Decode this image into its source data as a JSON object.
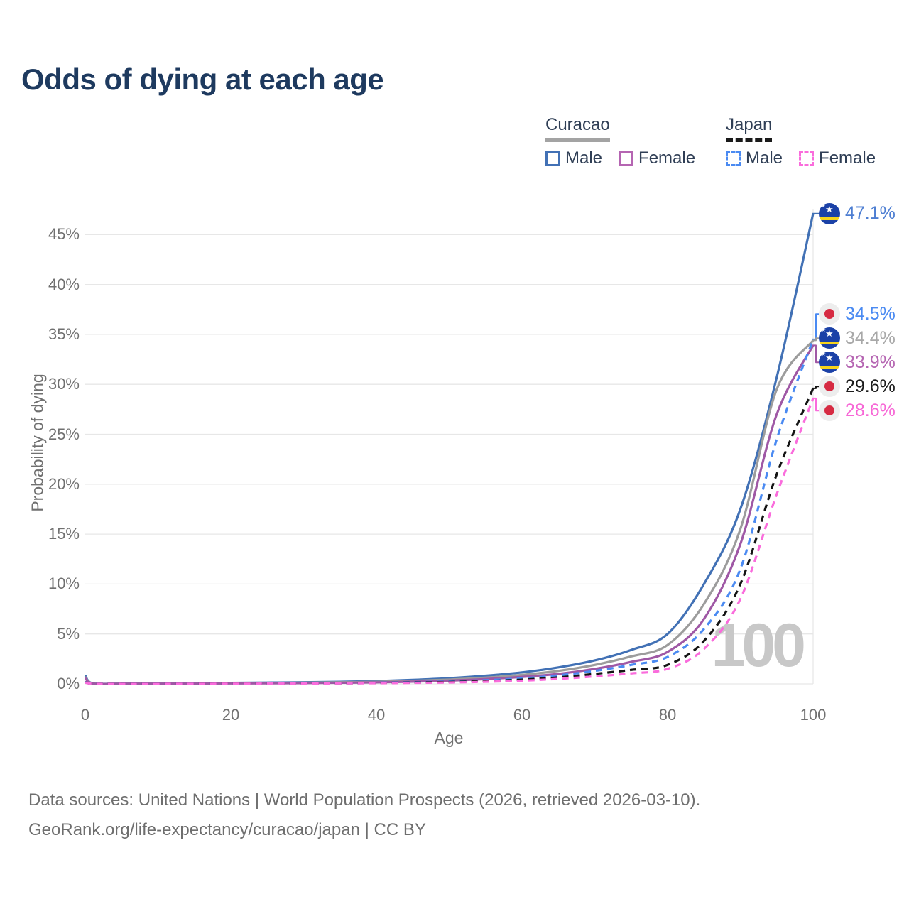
{
  "title": "Odds of dying at each age",
  "legend": {
    "groups": [
      {
        "id": "curacao",
        "label": "Curacao",
        "line_style": "solid",
        "header_line_color": "#a3a3a3",
        "items": [
          {
            "label": "Male",
            "color": "#4271b5"
          },
          {
            "label": "Female",
            "color": "#b565b2"
          }
        ]
      },
      {
        "id": "japan",
        "label": "Japan",
        "line_style": "dashed",
        "header_line_color": "#1a1a1a",
        "items": [
          {
            "label": "Male",
            "color": "#4a8af2"
          },
          {
            "label": "Female",
            "color": "#fa6cdc"
          }
        ]
      }
    ]
  },
  "axes": {
    "y_title": "Probability of dying",
    "x_title": "Age",
    "y_ticks": [
      {
        "value": 0,
        "label": "0%"
      },
      {
        "value": 5,
        "label": "5%"
      },
      {
        "value": 10,
        "label": "10%"
      },
      {
        "value": 15,
        "label": "15%"
      },
      {
        "value": 20,
        "label": "20%"
      },
      {
        "value": 25,
        "label": "25%"
      },
      {
        "value": 30,
        "label": "30%"
      },
      {
        "value": 35,
        "label": "35%"
      },
      {
        "value": 40,
        "label": "40%"
      },
      {
        "value": 45,
        "label": "45%"
      }
    ],
    "x_ticks": [
      {
        "value": 0,
        "label": "0"
      },
      {
        "value": 20,
        "label": "20"
      },
      {
        "value": 40,
        "label": "40"
      },
      {
        "value": 60,
        "label": "60"
      },
      {
        "value": 80,
        "label": "80"
      },
      {
        "value": 100,
        "label": "100"
      }
    ]
  },
  "watermark": "100",
  "chart_data": {
    "type": "line",
    "title": "Odds of dying at each age",
    "xlabel": "Age",
    "ylabel": "Probability of dying",
    "xlim": [
      0,
      100
    ],
    "ylim": [
      0,
      45
    ],
    "grid": "horizontal",
    "x": [
      0,
      1,
      5,
      10,
      15,
      20,
      25,
      30,
      35,
      40,
      45,
      50,
      55,
      60,
      65,
      70,
      75,
      80,
      85,
      90,
      95,
      100
    ],
    "series": [
      {
        "name": "Curacao Male",
        "country": "Curacao",
        "sex": "male",
        "line_style": "solid",
        "color": "#4271b5",
        "label_color": "#4d7ed2",
        "flag": "curacao",
        "end_label": "47.1%",
        "end_value_pct": 47.1,
        "values": [
          0.85,
          0.06,
          0.03,
          0.03,
          0.06,
          0.1,
          0.13,
          0.16,
          0.21,
          0.28,
          0.4,
          0.57,
          0.82,
          1.15,
          1.65,
          2.35,
          3.4,
          5.0,
          10.0,
          17.5,
          30.7,
          47.1
        ]
      },
      {
        "name": "Curacao",
        "country": "Curacao",
        "sex": "both",
        "line_style": "solid",
        "color": "#9c9c9c",
        "label_color": "#a8a8a8",
        "flag": "curacao",
        "end_label": "34.4%",
        "end_value_pct": 34.4,
        "values": [
          0.7,
          0.05,
          0.02,
          0.02,
          0.04,
          0.07,
          0.09,
          0.12,
          0.16,
          0.21,
          0.3,
          0.43,
          0.62,
          0.9,
          1.3,
          1.9,
          2.75,
          3.9,
          8.0,
          15.5,
          29.5,
          34.4
        ]
      },
      {
        "name": "Curacao Female",
        "country": "Curacao",
        "sex": "female",
        "line_style": "solid",
        "color": "#9f58a5",
        "label_color": "#b565b2",
        "flag": "curacao",
        "end_label": "33.9%",
        "end_value_pct": 33.9,
        "values": [
          0.6,
          0.04,
          0.02,
          0.02,
          0.03,
          0.05,
          0.06,
          0.08,
          0.11,
          0.15,
          0.22,
          0.33,
          0.48,
          0.7,
          1.0,
          1.5,
          2.2,
          3.2,
          6.5,
          14.0,
          27.0,
          33.9
        ]
      },
      {
        "name": "Japan Male",
        "country": "Japan",
        "sex": "male",
        "line_style": "dashed",
        "color": "#4a8af2",
        "label_color": "#4a8af2",
        "flag": "japan",
        "end_label": "34.5%",
        "end_value_pct": 34.5,
        "values": [
          0.18,
          0.03,
          0.01,
          0.01,
          0.02,
          0.04,
          0.05,
          0.06,
          0.08,
          0.11,
          0.16,
          0.24,
          0.37,
          0.55,
          0.85,
          1.3,
          1.9,
          2.7,
          5.5,
          11.5,
          24.5,
          34.5
        ]
      },
      {
        "name": "Japan",
        "country": "Japan",
        "sex": "both",
        "line_style": "dashed",
        "color": "#141414",
        "label_color": "#1c1c1c",
        "flag": "japan",
        "end_label": "29.6%",
        "end_value_pct": 29.6,
        "values": [
          0.16,
          0.025,
          0.008,
          0.008,
          0.015,
          0.03,
          0.04,
          0.05,
          0.06,
          0.09,
          0.13,
          0.19,
          0.28,
          0.42,
          0.65,
          1.0,
          1.4,
          1.9,
          4.3,
          10.0,
          21.0,
          29.6
        ]
      },
      {
        "name": "Japan Female",
        "country": "Japan",
        "sex": "female",
        "line_style": "dashed",
        "color": "#fa6cdc",
        "label_color": "#f767d6",
        "flag": "japan",
        "end_label": "28.6%",
        "end_value_pct": 28.6,
        "values": [
          0.14,
          0.02,
          0.006,
          0.006,
          0.01,
          0.02,
          0.025,
          0.035,
          0.05,
          0.07,
          0.1,
          0.14,
          0.21,
          0.32,
          0.5,
          0.75,
          1.05,
          1.5,
          3.5,
          8.5,
          19.0,
          28.6
        ]
      }
    ]
  },
  "colors": {
    "title": "#1e3a5f",
    "axis_text": "#707070",
    "gridline": "#e7e7e7",
    "watermark": "#c8c8c8",
    "legend_text": "#2f3e55",
    "curacao_flag_blue": "#1b41a7",
    "curacao_flag_yellow": "#f6d31c",
    "japan_flag_red": "#d62a42",
    "japan_flag_bg": "#ededed"
  },
  "footer": {
    "line1": "Data sources: United Nations | World Population Prospects (2026, retrieved 2026-03-10).",
    "line2": "GeoRank.org/life-expectancy/curacao/japan | CC BY"
  }
}
